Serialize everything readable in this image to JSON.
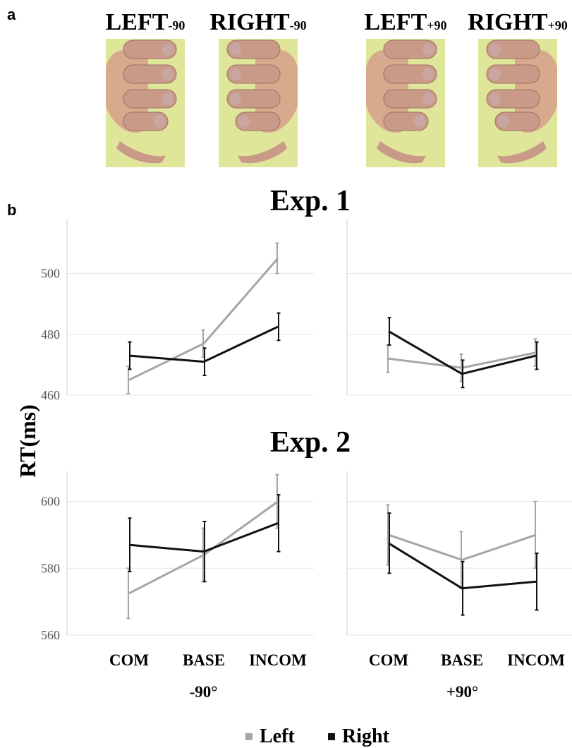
{
  "panel_a": {
    "label": "a",
    "hands": [
      {
        "main": "LEFT",
        "sub": "-90"
      },
      {
        "main": "RIGHT",
        "sub": "-90"
      },
      {
        "main": "LEFT",
        "sub": "+90"
      },
      {
        "main": "RIGHT",
        "sub": "+90"
      }
    ]
  },
  "panel_b": {
    "label": "b",
    "y_label": "RT(ms)"
  },
  "chart_data": [
    {
      "type": "line",
      "title": "Exp. 1",
      "ylim": [
        460,
        518
      ],
      "yticks": [
        460,
        480,
        500
      ],
      "grid": true,
      "series": [
        {
          "name": "Left",
          "color": "#a6a6a6",
          "values": [
            465,
            477,
            505
          ],
          "errors": [
            4.5,
            4.5,
            5
          ]
        },
        {
          "name": "Right",
          "color": "#111111",
          "values": [
            473,
            471,
            482.5
          ],
          "errors": [
            4.5,
            4.5,
            4.5
          ]
        }
      ]
    },
    {
      "type": "line",
      "ylim": [
        460,
        518
      ],
      "sharey": true,
      "grid": true,
      "series": [
        {
          "name": "Left",
          "color": "#a6a6a6",
          "values": [
            472,
            469,
            474
          ],
          "errors": [
            4.5,
            4.5,
            4.5
          ]
        },
        {
          "name": "Right",
          "color": "#111111",
          "values": [
            481,
            467,
            473
          ],
          "errors": [
            4.5,
            4.5,
            4.5
          ]
        }
      ]
    },
    {
      "type": "line",
      "title": "Exp. 2",
      "ylim": [
        560,
        609
      ],
      "yticks": [
        560,
        580,
        600
      ],
      "grid": true,
      "categories": [
        "COM",
        "BASE",
        "INCOM"
      ],
      "xlabel": "-90°",
      "series": [
        {
          "name": "Left",
          "color": "#a6a6a6",
          "values": [
            572.5,
            584,
            600
          ],
          "errors": [
            7.5,
            8,
            8
          ]
        },
        {
          "name": "Right",
          "color": "#111111",
          "values": [
            587,
            585,
            593.5
          ],
          "errors": [
            8,
            9,
            8.5
          ]
        }
      ]
    },
    {
      "type": "line",
      "ylim": [
        560,
        609
      ],
      "sharey": true,
      "grid": true,
      "categories": [
        "COM",
        "BASE",
        "INCOM"
      ],
      "xlabel": "+90°",
      "series": [
        {
          "name": "Left",
          "color": "#a6a6a6",
          "values": [
            590,
            582.5,
            590
          ],
          "errors": [
            9,
            8.5,
            10
          ]
        },
        {
          "name": "Right",
          "color": "#111111",
          "values": [
            587.5,
            574,
            576
          ],
          "errors": [
            9,
            8,
            8.5
          ]
        }
      ]
    }
  ]
}
